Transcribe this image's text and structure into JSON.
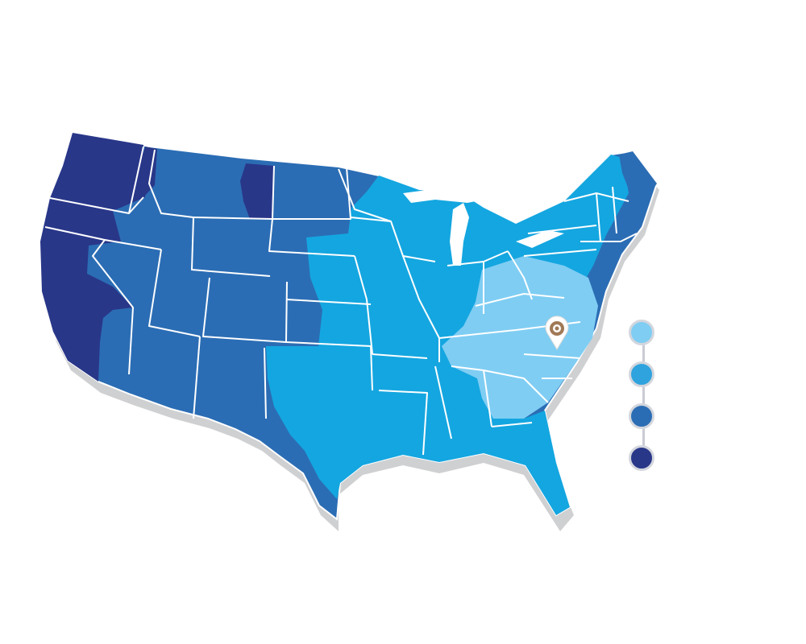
{
  "map": {
    "zone_colors": {
      "zone1": "#7fcdf3",
      "zone2": "#14a6e0",
      "zone3": "#2b6db4",
      "zone4": "#293789",
      "shadow": "#cfd0d2",
      "border": "#ffffff"
    },
    "marker_icon": "location-pin-icon",
    "legend": [
      {
        "color": "#7fcdf3",
        "icon": "zone-dot-light"
      },
      {
        "color": "#2fa3de",
        "icon": "zone-dot-medium"
      },
      {
        "color": "#2b6db4",
        "icon": "zone-dot-dark"
      },
      {
        "color": "#293789",
        "icon": "zone-dot-darkest"
      }
    ]
  }
}
